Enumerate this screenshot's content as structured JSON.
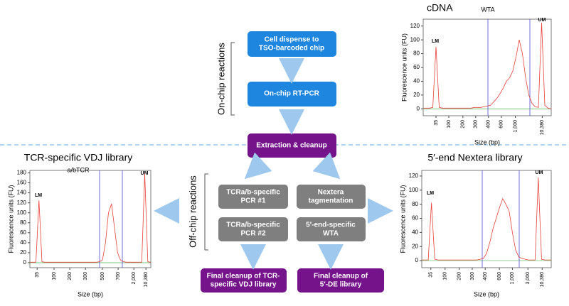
{
  "flow": {
    "boxes": [
      {
        "lines": [
          "Cell dispense to",
          "TSO-barcoded chip"
        ]
      },
      {
        "lines": [
          "On-chip RT-PCR"
        ]
      },
      {
        "lines": [
          "Extraction & cleanup"
        ]
      },
      {
        "lines": [
          "TCRa/b-specific",
          "PCR #1"
        ]
      },
      {
        "lines": [
          "Nextera",
          "tagmentation"
        ]
      },
      {
        "lines": [
          "TCRa/b-specific",
          "PCR #2"
        ]
      },
      {
        "lines": [
          "5′-end-specific",
          "WTA"
        ]
      },
      {
        "lines": [
          "Final cleanup of TCR-",
          "specific VDJ library"
        ]
      },
      {
        "lines": [
          "Final cleanup of",
          "5′-DE library"
        ]
      }
    ],
    "side_labels": [
      "On-chip reactions",
      "Off-chip reactions"
    ]
  },
  "chart_data": [
    {
      "type": "line",
      "title": "cDNA",
      "annotations": [
        "WTA",
        "LM",
        "UM"
      ],
      "ylabel": "Fluorescence units (FU)",
      "xlabel": "Size (bp)",
      "color": "#e8403a",
      "xticks": [
        "35",
        "100",
        "200",
        "300",
        "400",
        "600",
        "1,000",
        "10,380"
      ],
      "ylim": [
        -10,
        130
      ],
      "yticks": [
        0,
        20,
        40,
        60,
        80,
        100,
        120
      ],
      "values": [
        1,
        1,
        1,
        2,
        90,
        2,
        1,
        1,
        1,
        1,
        1,
        1,
        1,
        1,
        1,
        1,
        2,
        2,
        2,
        3,
        4,
        5,
        10,
        15,
        22,
        30,
        40,
        45,
        55,
        75,
        100,
        80,
        45,
        20,
        8,
        3,
        2,
        125,
        5,
        1,
        0
      ]
    },
    {
      "type": "line",
      "title": "TCR-specific VDJ library",
      "annotations": [
        "a/bTCR",
        "LM",
        "UM"
      ],
      "ylabel": "Fluorescence units (FU)",
      "xlabel": "Size (bp)",
      "color": "#e8403a",
      "xticks": [
        "35",
        "100",
        "200",
        "300",
        "500",
        "700",
        "2,000",
        "10,380"
      ],
      "ylim": [
        -10,
        185
      ],
      "yticks": [
        0,
        20,
        40,
        60,
        80,
        100,
        120,
        140,
        160,
        180
      ],
      "values": [
        1,
        1,
        1,
        125,
        2,
        1,
        1,
        1,
        1,
        1,
        1,
        1,
        1,
        1,
        1,
        1,
        1,
        1,
        1,
        1,
        1,
        1,
        1,
        2,
        5,
        40,
        100,
        118,
        70,
        20,
        5,
        2,
        1,
        1,
        1,
        1,
        1,
        1,
        178,
        2,
        1
      ]
    },
    {
      "type": "line",
      "title": "5′-end Nextera library",
      "annotations": [
        "LM",
        "UM"
      ],
      "ylabel": "Fluorescence units (FU)",
      "xlabel": "Size (bp)",
      "color": "#e8403a",
      "xticks": [
        "35",
        "100",
        "200",
        "300",
        "400",
        "600",
        "1,000",
        "3,000",
        "10,380"
      ],
      "ylim": [
        -10,
        128
      ],
      "yticks": [
        0,
        20,
        40,
        60,
        80,
        100,
        120
      ],
      "values": [
        1,
        1,
        1,
        82,
        2,
        1,
        1,
        1,
        1,
        1,
        1,
        1,
        1,
        1,
        1,
        1,
        1,
        1,
        2,
        3,
        10,
        25,
        45,
        60,
        75,
        88,
        80,
        70,
        40,
        15,
        5,
        3,
        2,
        1,
        1,
        1,
        118,
        2,
        1,
        1,
        1
      ]
    }
  ]
}
